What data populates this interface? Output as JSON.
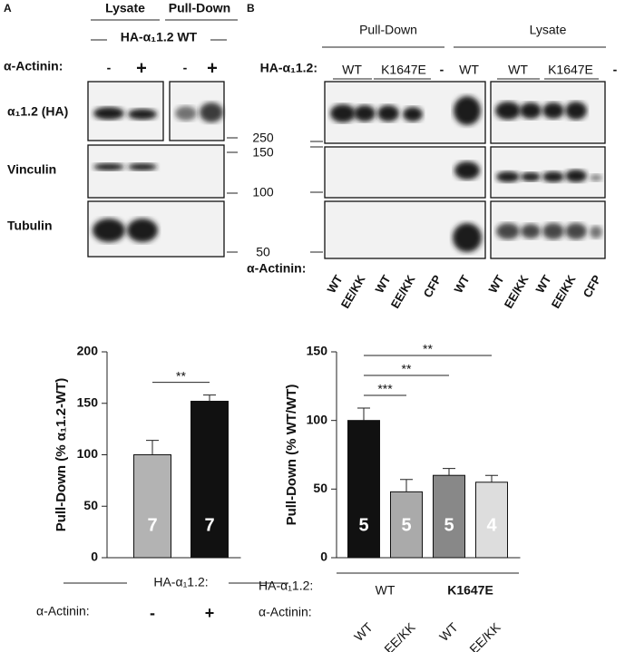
{
  "panels": {
    "A": {
      "letter": "A",
      "lysate": "Lysate",
      "pulldown": "Pull-Down",
      "construct": "HA-α₁1.2 WT",
      "actinin": "α-Actinin:",
      "lanes": [
        "-",
        "+",
        "-",
        "+"
      ],
      "rows": [
        "α₁1.2 (HA)",
        "Vinculin",
        "Tubulin"
      ]
    },
    "markers": [
      "250",
      "150",
      "100",
      "50"
    ],
    "B": {
      "letter": "B",
      "pulldown": "Pull-Down",
      "lysate": "Lysate",
      "construct": "HA-α₁1.2:",
      "top_lanes": [
        "WT",
        "K1647E",
        "-",
        "WT",
        "WT",
        "K1647E",
        "-"
      ],
      "actinin": "α-Actinin:",
      "bottom_lanes": [
        "WT",
        "EE/KK",
        "WT",
        "EE/KK",
        "CFP",
        "WT",
        "WT",
        "EE/KK",
        "WT",
        "EE/KK",
        "CFP"
      ]
    }
  },
  "chart_data": [
    {
      "type": "bar",
      "ylabel": "Pull-Down (% α₁1.2-WT)",
      "categories": [
        "-",
        "+"
      ],
      "values": [
        100,
        152
      ],
      "errors": [
        14,
        6
      ],
      "colors": [
        "#b3b3b3",
        "#111111"
      ],
      "n_labels": [
        "7",
        "7"
      ],
      "ylim": [
        0,
        200
      ],
      "yticks": [
        0,
        50,
        100,
        150,
        200
      ],
      "significance": [
        {
          "label": "**",
          "from": 0,
          "to": 1
        }
      ],
      "group_label": "HA-α₁1.2:",
      "category_label": "α-Actinin:"
    },
    {
      "type": "bar",
      "ylabel": "Pull-Down (% WT/WT)",
      "categories": [
        "WT",
        "EE/KK",
        "WT",
        "EE/KK"
      ],
      "values": [
        100,
        48,
        60,
        55
      ],
      "errors": [
        9,
        9,
        5,
        5
      ],
      "colors": [
        "#111111",
        "#aaaaaa",
        "#888888",
        "#dddddd"
      ],
      "n_labels": [
        "5",
        "5",
        "5",
        "4"
      ],
      "ylim": [
        0,
        150
      ],
      "yticks": [
        0,
        50,
        100,
        150
      ],
      "significance": [
        {
          "label": "**",
          "from": 0,
          "to": 3
        },
        {
          "label": "**",
          "from": 0,
          "to": 2
        },
        {
          "label": "***",
          "from": 0,
          "to": 1
        }
      ],
      "group_label": "HA-α₁1.2:",
      "groups": [
        "WT",
        "K1647E"
      ],
      "category_label": "α-Actinin:"
    }
  ]
}
